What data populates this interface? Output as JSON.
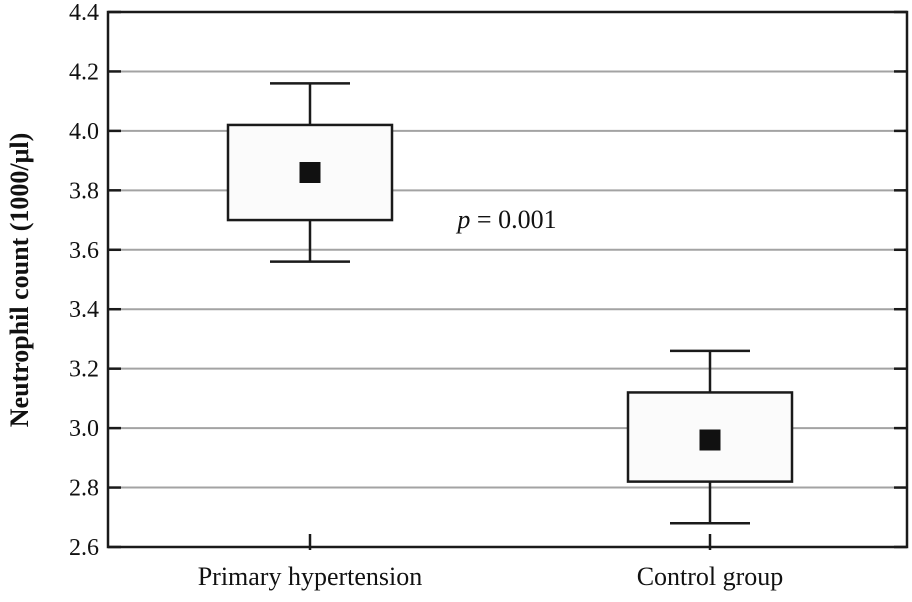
{
  "chart_data": {
    "type": "boxplot",
    "title": "",
    "xlabel": "",
    "ylabel": "Neutrophil count (1000/μl)",
    "ylim": [
      2.6,
      4.4
    ],
    "ytick_step": 0.2,
    "yticks": [
      2.6,
      2.8,
      3.0,
      3.2,
      3.4,
      3.6,
      3.8,
      4.0,
      4.2,
      4.4
    ],
    "grid": true,
    "legend": "none",
    "marker_style": "filled-square-mean",
    "categories": [
      "Primary hypertension",
      "Control group"
    ],
    "series": [
      {
        "category": "Primary hypertension",
        "mean": 3.86,
        "box_low": 3.7,
        "box_high": 4.02,
        "whisker_low": 3.56,
        "whisker_high": 4.16
      },
      {
        "category": "Control group",
        "mean": 2.96,
        "box_low": 2.82,
        "box_high": 3.12,
        "whisker_low": 2.68,
        "whisker_high": 3.26
      }
    ],
    "annotation": {
      "text": "p = 0.001",
      "text_italic": "p",
      "text_rest": " = 0.001"
    },
    "colors": {
      "background": "#ffffff",
      "line": "#1a1a1a",
      "grid": "#a3a3a3",
      "box_fill": "#fbfbfb",
      "mean_marker": "#111111"
    }
  }
}
